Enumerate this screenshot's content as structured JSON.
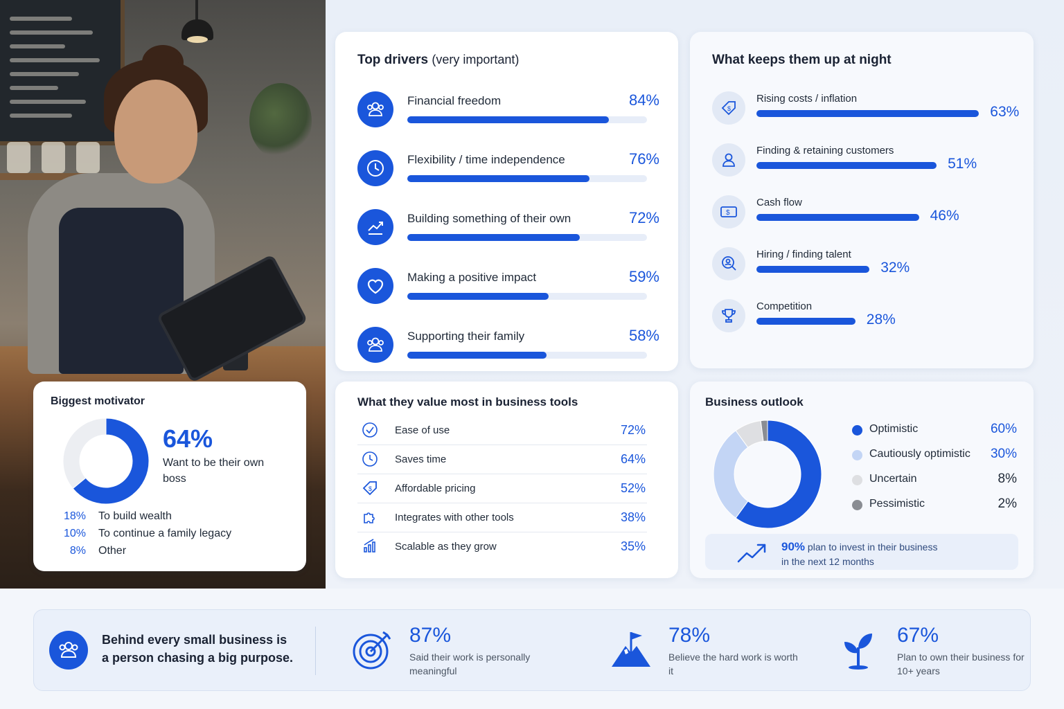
{
  "drivers": {
    "title": "Top drivers",
    "subtitle": "(very important)",
    "items": [
      {
        "label": "Financial freedom",
        "pct": "84%",
        "icon": "people-icon"
      },
      {
        "label": "Flexibility / time independence",
        "pct": "76%",
        "icon": "clock-icon"
      },
      {
        "label": "Building something of their own",
        "pct": "72%",
        "icon": "growth-chart-icon"
      },
      {
        "label": "Making a positive impact",
        "pct": "59%",
        "icon": "heart-icon"
      },
      {
        "label": "Supporting their family",
        "pct": "58%",
        "icon": "people-icon"
      }
    ]
  },
  "night": {
    "title": "What keeps them up at night",
    "items": [
      {
        "label": "Rising costs / inflation",
        "pct": "63%",
        "icon": "price-tag-icon"
      },
      {
        "label": "Finding & retaining customers",
        "pct": "51%",
        "icon": "person-icon"
      },
      {
        "label": "Cash flow",
        "pct": "46%",
        "icon": "cash-icon"
      },
      {
        "label": "Hiring / finding talent",
        "pct": "32%",
        "icon": "talent-search-icon"
      },
      {
        "label": "Competition",
        "pct": "28%",
        "icon": "trophy-icon"
      }
    ]
  },
  "motivator": {
    "title": "Biggest motivator",
    "big_pct": "64%",
    "big_text": "Want to be their own boss",
    "others": [
      {
        "pct": "18%",
        "label": "To build wealth"
      },
      {
        "pct": "10%",
        "label": "To continue a family legacy"
      },
      {
        "pct": "8%",
        "label": "Other"
      }
    ]
  },
  "tools": {
    "title": "What they value most in business tools",
    "items": [
      {
        "label": "Ease of use",
        "pct": "72%",
        "icon": "check-circle-icon"
      },
      {
        "label": "Saves time",
        "pct": "64%",
        "icon": "clock-icon"
      },
      {
        "label": "Affordable pricing",
        "pct": "52%",
        "icon": "price-tag-icon"
      },
      {
        "label": "Integrates with other tools",
        "pct": "38%",
        "icon": "puzzle-icon"
      },
      {
        "label": "Scalable as they grow",
        "pct": "35%",
        "icon": "bar-growth-icon"
      }
    ]
  },
  "outlook": {
    "title": "Business outlook",
    "items": [
      {
        "label": "Optimistic",
        "pct": "60%",
        "color": "#1a56db"
      },
      {
        "label": "Cautiously optimistic",
        "pct": "30%",
        "color": "#c3d5f5"
      },
      {
        "label": "Uncertain",
        "pct": "8%",
        "color": "#dedfe2"
      },
      {
        "label": "Pessimistic",
        "pct": "2%",
        "color": "#8a8d93"
      }
    ],
    "invest_pct": "90%",
    "invest_text1": "plan to invest in their business",
    "invest_text2": "in the next 12 months"
  },
  "banner": {
    "tagline": "Behind every small business is a person chasing a big purpose.",
    "stats": [
      {
        "num": "87%",
        "desc": "Said their work is personally meaningful",
        "icon": "target-icon"
      },
      {
        "num": "78%",
        "desc": "Believe the hard work is worth it",
        "icon": "mountain-flag-icon"
      },
      {
        "num": "67%",
        "desc": "Plan to own their business for 10+ years",
        "icon": "sprout-icon"
      }
    ]
  },
  "chart_data": [
    {
      "type": "bar",
      "title": "Top drivers (very important)",
      "categories": [
        "Financial freedom",
        "Flexibility / time independence",
        "Building something of their own",
        "Making a positive impact",
        "Supporting their family"
      ],
      "values": [
        84,
        76,
        72,
        59,
        58
      ],
      "ylim": [
        0,
        100
      ]
    },
    {
      "type": "bar",
      "title": "What keeps them up at night",
      "categories": [
        "Rising costs / inflation",
        "Finding & retaining customers",
        "Cash flow",
        "Hiring / finding talent",
        "Competition"
      ],
      "values": [
        63,
        51,
        46,
        32,
        28
      ],
      "ylim": [
        0,
        100
      ]
    },
    {
      "type": "pie",
      "title": "Biggest motivator",
      "categories": [
        "Want to be their own boss",
        "To build wealth",
        "To continue a family legacy",
        "Other"
      ],
      "values": [
        64,
        18,
        10,
        8
      ]
    },
    {
      "type": "table",
      "title": "What they value most in business tools",
      "categories": [
        "Ease of use",
        "Saves time",
        "Affordable pricing",
        "Integrates with other tools",
        "Scalable as they grow"
      ],
      "values": [
        72,
        64,
        52,
        38,
        35
      ]
    },
    {
      "type": "pie",
      "title": "Business outlook",
      "categories": [
        "Optimistic",
        "Cautiously optimistic",
        "Uncertain",
        "Pessimistic"
      ],
      "values": [
        60,
        30,
        8,
        2
      ]
    }
  ]
}
